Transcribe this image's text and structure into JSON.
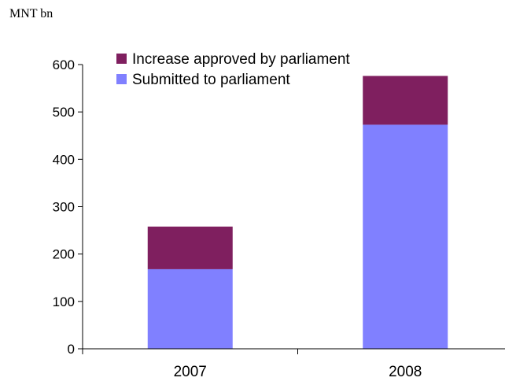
{
  "chart_data": {
    "type": "bar",
    "stacked": true,
    "unit_label": "MNT bn",
    "title": "",
    "xlabel": "",
    "ylabel": "",
    "categories": [
      "2007",
      "2008"
    ],
    "ylim": [
      0,
      600
    ],
    "yticks": [
      0,
      100,
      200,
      300,
      400,
      500,
      600
    ],
    "grid": false,
    "legend_position": "top",
    "series": [
      {
        "name": "Submitted to parliament",
        "values": [
          168,
          473
        ],
        "color": "#8080ff"
      },
      {
        "name": "Increase approved by parliament",
        "values": [
          90,
          103
        ],
        "color": "#7f1f5f"
      }
    ],
    "legend_order": [
      1,
      0
    ]
  }
}
